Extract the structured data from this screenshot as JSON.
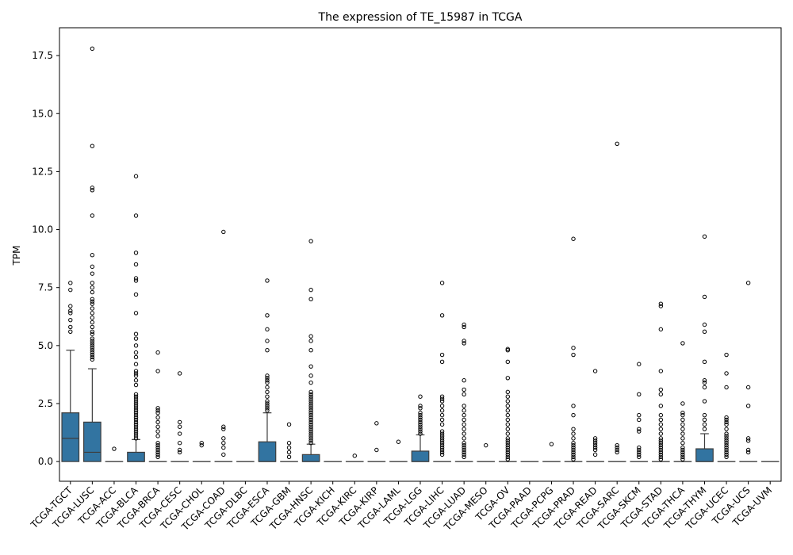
{
  "chart_data": {
    "type": "box",
    "title": "The expression of TE_15987 in TCGA",
    "xlabel": "",
    "ylabel": "TPM",
    "ylim": [
      -0.85,
      18.7
    ],
    "yticks": [
      0.0,
      2.5,
      5.0,
      7.5,
      10.0,
      12.5,
      15.0,
      17.5
    ],
    "ytick_labels": [
      "0.0",
      "2.5",
      "5.0",
      "7.5",
      "10.0",
      "12.5",
      "15.0",
      "17.5"
    ],
    "box_color": "#3274a1",
    "grid": false,
    "categories": [
      "TCGA-TGCT",
      "TCGA-LUSC",
      "TCGA-ACC",
      "TCGA-BLCA",
      "TCGA-BRCA",
      "TCGA-CESC",
      "TCGA-CHOL",
      "TCGA-COAD",
      "TCGA-DLBC",
      "TCGA-ESCA",
      "TCGA-GBM",
      "TCGA-HNSC",
      "TCGA-KICH",
      "TCGA-KIRC",
      "TCGA-KIRP",
      "TCGA-LAML",
      "TCGA-LGG",
      "TCGA-LIHC",
      "TCGA-LUAD",
      "TCGA-MESO",
      "TCGA-OV",
      "TCGA-PAAD",
      "TCGA-PCPG",
      "TCGA-PRAD",
      "TCGA-READ",
      "TCGA-SARC",
      "TCGA-SKCM",
      "TCGA-STAD",
      "TCGA-THCA",
      "TCGA-THYM",
      "TCGA-UCEC",
      "TCGA-UCS",
      "TCGA-UVM"
    ],
    "boxes": [
      {
        "q1": 0,
        "median": 1.0,
        "q3": 2.1,
        "whisker_low": 0,
        "whisker_high": 4.8,
        "outliers": [
          5.6,
          5.8,
          6.1,
          6.4,
          6.5,
          6.7,
          7.4,
          7.7
        ]
      },
      {
        "q1": 0,
        "median": 0.4,
        "q3": 1.7,
        "whisker_low": 0,
        "whisker_high": 4.0,
        "outliers": [
          4.4,
          4.5,
          4.6,
          4.7,
          4.8,
          4.9,
          5.0,
          5.1,
          5.2,
          5.3,
          5.5,
          5.6,
          5.8,
          6.0,
          6.2,
          6.4,
          6.6,
          6.8,
          6.9,
          7.0,
          7.3,
          7.5,
          7.7,
          8.1,
          8.4,
          8.9,
          10.6,
          11.7,
          11.8,
          13.6,
          17.8
        ]
      },
      {
        "q1": 0,
        "median": 0,
        "q3": 0,
        "whisker_low": 0,
        "whisker_high": 0,
        "outliers": [
          0.55
        ]
      },
      {
        "q1": 0,
        "median": 0,
        "q3": 0.4,
        "whisker_low": 0,
        "whisker_high": 0.95,
        "outliers": [
          1.0,
          1.1,
          1.2,
          1.3,
          1.4,
          1.5,
          1.6,
          1.7,
          1.8,
          1.9,
          2.0,
          2.1,
          2.2,
          2.3,
          2.4,
          2.5,
          2.6,
          2.7,
          2.8,
          2.9,
          3.3,
          3.5,
          3.7,
          3.8,
          3.9,
          4.2,
          4.5,
          4.7,
          5.0,
          5.3,
          5.5,
          6.4,
          7.2,
          7.8,
          7.9,
          8.5,
          9.0,
          10.6,
          12.3
        ]
      },
      {
        "q1": 0,
        "median": 0,
        "q3": 0,
        "whisker_low": 0,
        "whisker_high": 0,
        "outliers": [
          0.2,
          0.3,
          0.4,
          0.5,
          0.6,
          0.7,
          0.8,
          1.1,
          1.3,
          1.5,
          1.7,
          1.9,
          2.1,
          2.2,
          2.3,
          3.9,
          4.7
        ]
      },
      {
        "q1": 0,
        "median": 0,
        "q3": 0,
        "whisker_low": 0,
        "whisker_high": 0,
        "outliers": [
          0.4,
          0.5,
          0.8,
          1.2,
          1.5,
          1.7,
          3.8
        ]
      },
      {
        "q1": 0,
        "median": 0,
        "q3": 0,
        "whisker_low": 0,
        "whisker_high": 0,
        "outliers": [
          0.7,
          0.8
        ]
      },
      {
        "q1": 0,
        "median": 0,
        "q3": 0,
        "whisker_low": 0,
        "whisker_high": 0,
        "outliers": [
          0.3,
          0.6,
          0.8,
          1.0,
          1.4,
          1.5,
          9.9
        ]
      },
      {
        "q1": 0,
        "median": 0,
        "q3": 0,
        "whisker_low": 0,
        "whisker_high": 0,
        "outliers": []
      },
      {
        "q1": 0,
        "median": 0,
        "q3": 0.85,
        "whisker_low": 0,
        "whisker_high": 2.1,
        "outliers": [
          2.2,
          2.3,
          2.4,
          2.5,
          2.6,
          2.8,
          3.0,
          3.2,
          3.4,
          3.5,
          3.6,
          3.7,
          4.8,
          5.2,
          5.7,
          6.3,
          7.8
        ]
      },
      {
        "q1": 0,
        "median": 0,
        "q3": 0,
        "whisker_low": 0,
        "whisker_high": 0,
        "outliers": [
          0.2,
          0.4,
          0.6,
          0.8,
          1.6
        ]
      },
      {
        "q1": 0,
        "median": 0,
        "q3": 0.3,
        "whisker_low": 0,
        "whisker_high": 0.75,
        "outliers": [
          0.8,
          0.9,
          1.0,
          1.1,
          1.2,
          1.3,
          1.4,
          1.5,
          1.6,
          1.7,
          1.8,
          1.9,
          2.0,
          2.1,
          2.2,
          2.3,
          2.4,
          2.5,
          2.6,
          2.7,
          2.8,
          2.9,
          3.0,
          3.4,
          3.7,
          4.1,
          4.8,
          5.2,
          5.4,
          7.0,
          7.4,
          9.5
        ]
      },
      {
        "q1": 0,
        "median": 0,
        "q3": 0,
        "whisker_low": 0,
        "whisker_high": 0,
        "outliers": []
      },
      {
        "q1": 0,
        "median": 0,
        "q3": 0,
        "whisker_low": 0,
        "whisker_high": 0,
        "outliers": [
          0.25
        ]
      },
      {
        "q1": 0,
        "median": 0,
        "q3": 0,
        "whisker_low": 0,
        "whisker_high": 0,
        "outliers": [
          0.5,
          1.65
        ]
      },
      {
        "q1": 0,
        "median": 0,
        "q3": 0,
        "whisker_low": 0,
        "whisker_high": 0,
        "outliers": [
          0.85
        ]
      },
      {
        "q1": 0,
        "median": 0,
        "q3": 0.45,
        "whisker_low": 0,
        "whisker_high": 1.15,
        "outliers": [
          1.2,
          1.3,
          1.4,
          1.5,
          1.6,
          1.7,
          1.8,
          1.9,
          2.0,
          2.1,
          2.3,
          2.4,
          2.8
        ]
      },
      {
        "q1": 0,
        "median": 0,
        "q3": 0,
        "whisker_low": 0,
        "whisker_high": 0,
        "outliers": [
          0.3,
          0.4,
          0.5,
          0.6,
          0.7,
          0.8,
          0.9,
          1.0,
          1.1,
          1.2,
          1.3,
          1.6,
          1.8,
          2.0,
          2.2,
          2.4,
          2.6,
          2.7,
          2.8,
          4.3,
          4.6,
          6.3,
          7.7
        ]
      },
      {
        "q1": 0,
        "median": 0,
        "q3": 0,
        "whisker_low": 0,
        "whisker_high": 0,
        "outliers": [
          0.2,
          0.3,
          0.4,
          0.5,
          0.6,
          0.7,
          0.8,
          1.0,
          1.2,
          1.4,
          1.6,
          1.8,
          2.0,
          2.2,
          2.4,
          2.9,
          3.1,
          3.5,
          5.1,
          5.2,
          5.8,
          5.9
        ]
      },
      {
        "q1": 0,
        "median": 0,
        "q3": 0,
        "whisker_low": 0,
        "whisker_high": 0,
        "outliers": [
          0.7
        ]
      },
      {
        "q1": 0,
        "median": 0,
        "q3": 0,
        "whisker_low": 0,
        "whisker_high": 0,
        "outliers": [
          0.1,
          0.2,
          0.3,
          0.4,
          0.5,
          0.6,
          0.7,
          0.8,
          0.9,
          1.0,
          1.2,
          1.4,
          1.6,
          1.8,
          2.0,
          2.2,
          2.4,
          2.6,
          2.8,
          3.0,
          3.6,
          4.3,
          4.8,
          4.85
        ]
      },
      {
        "q1": 0,
        "median": 0,
        "q3": 0,
        "whisker_low": 0,
        "whisker_high": 0,
        "outliers": []
      },
      {
        "q1": 0,
        "median": 0,
        "q3": 0,
        "whisker_low": 0,
        "whisker_high": 0,
        "outliers": [
          0.75
        ]
      },
      {
        "q1": 0,
        "median": 0,
        "q3": 0,
        "whisker_low": 0,
        "whisker_high": 0,
        "outliers": [
          0.1,
          0.2,
          0.3,
          0.4,
          0.5,
          0.6,
          0.7,
          0.8,
          1.0,
          1.2,
          1.4,
          2.0,
          2.4,
          4.6,
          4.9,
          9.6
        ]
      },
      {
        "q1": 0,
        "median": 0,
        "q3": 0,
        "whisker_low": 0,
        "whisker_high": 0,
        "outliers": [
          0.3,
          0.5,
          0.6,
          0.7,
          0.8,
          0.9,
          1.0,
          3.9
        ]
      },
      {
        "q1": 0,
        "median": 0,
        "q3": 0,
        "whisker_low": 0,
        "whisker_high": 0,
        "outliers": [
          0.4,
          0.5,
          0.6,
          0.7,
          13.7
        ]
      },
      {
        "q1": 0,
        "median": 0,
        "q3": 0,
        "whisker_low": 0,
        "whisker_high": 0,
        "outliers": [
          0.2,
          0.3,
          0.4,
          0.5,
          0.6,
          1.3,
          1.4,
          1.8,
          2.0,
          2.9,
          4.2
        ]
      },
      {
        "q1": 0,
        "median": 0,
        "q3": 0,
        "whisker_low": 0,
        "whisker_high": 0,
        "outliers": [
          0.1,
          0.2,
          0.3,
          0.4,
          0.5,
          0.6,
          0.7,
          0.8,
          0.9,
          1.0,
          1.2,
          1.4,
          1.6,
          1.8,
          2.0,
          2.4,
          2.9,
          3.1,
          3.9,
          5.7,
          6.7,
          6.8
        ]
      },
      {
        "q1": 0,
        "median": 0,
        "q3": 0,
        "whisker_low": 0,
        "whisker_high": 0,
        "outliers": [
          0.1,
          0.2,
          0.3,
          0.4,
          0.5,
          0.6,
          0.8,
          1.0,
          1.2,
          1.4,
          1.6,
          1.8,
          2.0,
          2.1,
          2.5,
          5.1
        ]
      },
      {
        "q1": 0,
        "median": 0,
        "q3": 0.55,
        "whisker_low": 0,
        "whisker_high": 1.2,
        "outliers": [
          1.4,
          1.6,
          1.8,
          2.0,
          2.6,
          3.2,
          3.4,
          3.5,
          4.3,
          5.6,
          5.9,
          7.1,
          9.7
        ]
      },
      {
        "q1": 0,
        "median": 0,
        "q3": 0,
        "whisker_low": 0,
        "whisker_high": 0,
        "outliers": [
          0.2,
          0.3,
          0.4,
          0.5,
          0.6,
          0.7,
          0.8,
          0.9,
          1.0,
          1.1,
          1.2,
          1.4,
          1.6,
          1.7,
          1.8,
          1.9,
          3.2,
          3.8,
          4.6
        ]
      },
      {
        "q1": 0,
        "median": 0,
        "q3": 0,
        "whisker_low": 0,
        "whisker_high": 0,
        "outliers": [
          0.4,
          0.5,
          0.9,
          1.0,
          2.4,
          3.2,
          7.7
        ]
      },
      {
        "q1": 0,
        "median": 0,
        "q3": 0,
        "whisker_low": 0,
        "whisker_high": 0,
        "outliers": []
      }
    ]
  }
}
